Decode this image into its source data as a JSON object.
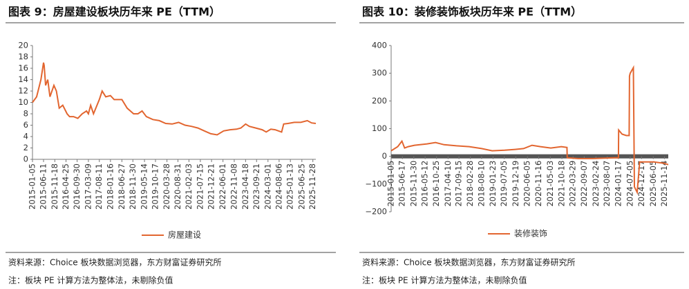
{
  "chart_data": [
    {
      "type": "line",
      "title": "图表 9：房屋建设板块历年来 PE（TTM）",
      "source": "资料来源：Choice 板块数据浏览器，东方财富证券研究所",
      "note": "注：板块 PE 计算方法为整体法，未剔除负值",
      "x": [
        "2015-01-05",
        "2015-03-05",
        "2015-05-05",
        "2015-06-11",
        "2015-06-20",
        "2015-07-10",
        "2015-08-10",
        "2015-09-10",
        "2015-11-05",
        "2015-12-10",
        "2016-01-20",
        "2016-03-10",
        "2016-05-10",
        "2016-06-15",
        "2016-08-10",
        "2016-10-10",
        "2016-12-10",
        "2017-02-10",
        "2017-03-09",
        "2017-04-10",
        "2017-05-20",
        "2017-08-11",
        "2017-09-20",
        "2017-11-10",
        "2018-01-16",
        "2018-03-10",
        "2018-06-27",
        "2018-09-10",
        "2018-12-10",
        "2019-02-10",
        "2019-04-10",
        "2019-06-10",
        "2019-09-10",
        "2019-12-10",
        "2020-03-10",
        "2020-06-10",
        "2020-09-10",
        "2020-12-10",
        "2021-03-10",
        "2021-06-10",
        "2021-09-10",
        "2021-12-10",
        "2022-03-10",
        "2022-06-10",
        "2022-09-10",
        "2022-12-10",
        "2023-02-10",
        "2023-04-18",
        "2023-06-10",
        "2023-09-10",
        "2023-12-10",
        "2024-02-05",
        "2024-04-10",
        "2024-06-10",
        "2024-09-10",
        "2024-10-10",
        "2024-12-10",
        "2025-03-10",
        "2025-06-10",
        "2025-09-10",
        "2025-11-10",
        "2026-01-09"
      ],
      "series": [
        {
          "name": "房屋建设",
          "color": "#e2652f",
          "values": [
            10,
            11,
            14,
            17,
            16.5,
            13,
            14,
            11,
            13,
            12,
            9,
            9.5,
            8,
            7.5,
            7.5,
            7.2,
            8,
            8.5,
            8,
            9.5,
            8,
            10.5,
            12,
            11,
            11.2,
            10.5,
            10.5,
            9,
            8,
            8,
            8.5,
            7.5,
            7,
            6.8,
            6.3,
            6.2,
            6.5,
            6,
            5.8,
            5.5,
            5,
            4.5,
            4.3,
            5,
            5.2,
            5.3,
            5.5,
            6.2,
            5.8,
            5.5,
            5.2,
            4.8,
            5.3,
            5.2,
            4.8,
            6.2,
            6.3,
            6.5,
            6.5,
            6.8,
            6.4,
            6.3
          ]
        }
      ],
      "xlim": [
        "2015-01-05",
        "2026-01-09"
      ],
      "xticks": [
        "2015-01-05",
        "2015-06-11",
        "2015-11-18",
        "2016-04-25",
        "2016-09-30",
        "2017-03-09",
        "2017-08-11",
        "2018-01-16",
        "2018-06-27",
        "2018-11-30",
        "2019-05-14",
        "2019-10-17",
        "2020-03-28",
        "2020-08-31",
        "2021-02-03",
        "2021-07-15",
        "2021-12-21",
        "2022-06-01",
        "2022-11-08",
        "2023-04-18",
        "2023-09-21",
        "2024-03-01",
        "2024-08-06",
        "2025-01-13",
        "2025-06-25",
        "2025-11-28"
      ],
      "ylim": [
        0,
        20
      ],
      "yticks": [
        0,
        2,
        4,
        6,
        8,
        10,
        12,
        14,
        16,
        18,
        20
      ],
      "grid": false,
      "legend": "bottom"
    },
    {
      "type": "line",
      "title": "图表 10：装修装饰板块历年来 PE（TTM）",
      "source": "资料来源：Choice 板块数据浏览器，东方财富证券研究所",
      "note": "注：板块 PE 计算方法为整体法，未剔除负值",
      "x": [
        "2015-01-05",
        "2015-04-10",
        "2015-06-10",
        "2015-07-20",
        "2015-09-10",
        "2015-12-10",
        "2016-06-10",
        "2016-10-10",
        "2017-02-10",
        "2017-08-10",
        "2018-02-10",
        "2018-08-10",
        "2019-01-10",
        "2019-07-10",
        "2019-12-10",
        "2020-04-10",
        "2020-08-10",
        "2020-12-10",
        "2021-05-10",
        "2021-10-10",
        "2021-12-31",
        "2022-01-04",
        "2022-06-10",
        "2023-01-10",
        "2023-12-10",
        "2024-01-17",
        "2024-01-20",
        "2024-03-10",
        "2024-05-10",
        "2024-06-20",
        "2024-06-25",
        "2024-07-05",
        "2024-08-20",
        "2024-09-05",
        "2024-10-15",
        "2024-11-20",
        "2025-06-10",
        "2025-11-10",
        "2026-01-09"
      ],
      "series": [
        {
          "name": "装修装饰",
          "color": "#e2652f",
          "values": [
            20,
            35,
            55,
            30,
            35,
            40,
            45,
            50,
            42,
            38,
            35,
            28,
            20,
            22,
            25,
            28,
            40,
            35,
            30,
            35,
            32,
            -5,
            -8,
            -8,
            -5,
            -5,
            95,
            80,
            75,
            75,
            290,
            300,
            320,
            -110,
            -130,
            -20,
            -20,
            -25,
            -30
          ]
        }
      ],
      "xlim": [
        "2015-01-05",
        "2026-01-09"
      ],
      "xticks": [
        "2015-01-05",
        "2015-06-17",
        "2015-11-30",
        "2016-05-12",
        "2016-10-25",
        "2017-04-10",
        "2017-09-15",
        "2018-02-28",
        "2018-08-10",
        "2019-01-23",
        "2019-07-05",
        "2019-12-19",
        "2020-06-05",
        "2020-11-16",
        "2021-05-03",
        "2021-10-18",
        "2022-03-29",
        "2022-09-07",
        "2023-02-24",
        "2023-08-07",
        "2024-01-17",
        "2024-07-05",
        "2024-12-17",
        "2025-06-05",
        "2025-11-14"
      ],
      "ylim": [
        -200,
        400
      ],
      "yticks": [
        {
          "value": -200,
          "label": "−200"
        },
        {
          "value": -100,
          "label": "−100"
        },
        0,
        100,
        200,
        300,
        400
      ],
      "grid": false,
      "legend": "bottom"
    }
  ]
}
